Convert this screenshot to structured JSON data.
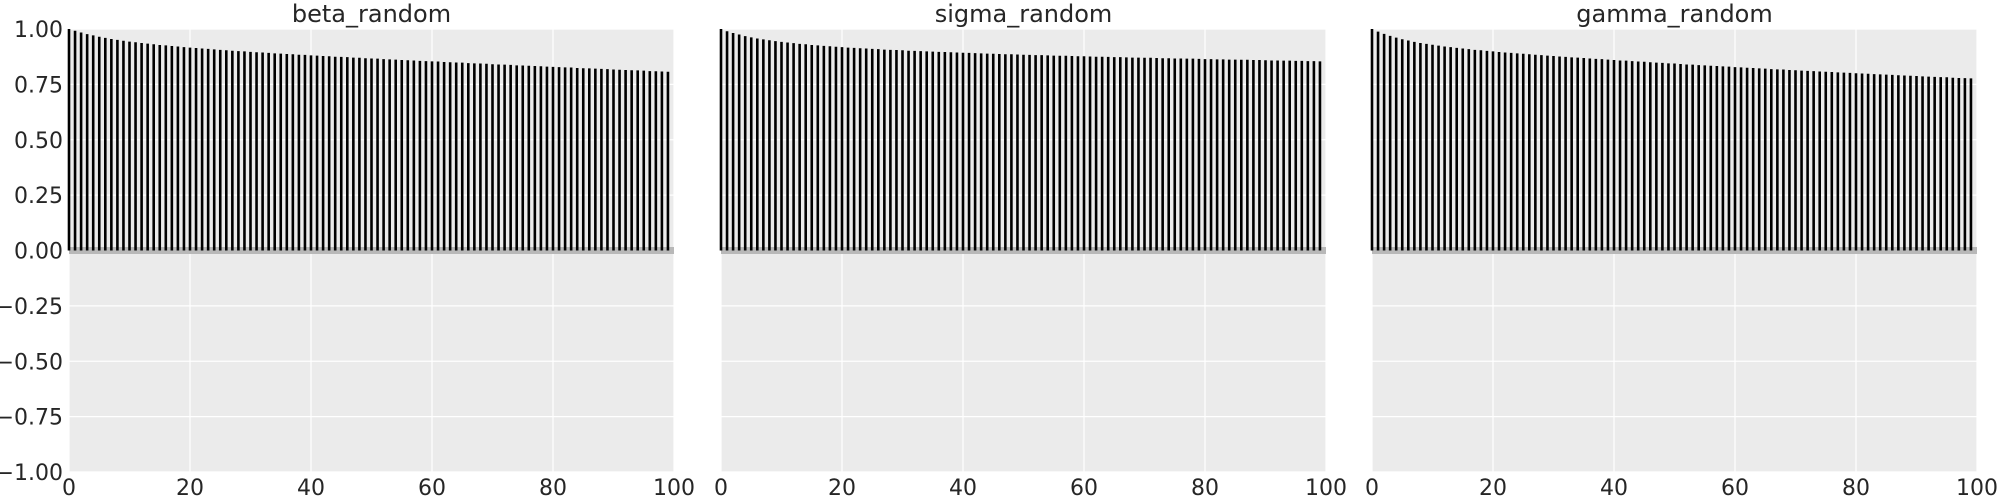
{
  "chart_data": [
    {
      "type": "bar",
      "title": "beta_random",
      "xlim": [
        0,
        100
      ],
      "ylim": [
        -1.0,
        1.0
      ],
      "grid": true,
      "xticks": [
        0,
        20,
        40,
        60,
        80,
        100
      ],
      "xtick_labels": [
        "0",
        "20",
        "40",
        "60",
        "80",
        "100"
      ],
      "yticks": [
        1.0,
        0.75,
        0.5,
        0.25,
        0.0,
        -0.25,
        -0.5,
        -0.75,
        -1.0
      ],
      "ytick_labels": [
        "1.00",
        "0.75",
        "0.50",
        "0.25",
        "0.00",
        "−0.25",
        "−0.50",
        "−0.75",
        "−1.00"
      ],
      "lags": [
        0,
        1,
        2,
        3,
        4,
        5,
        6,
        7,
        8,
        9,
        10,
        11,
        12,
        13,
        14,
        15,
        16,
        17,
        18,
        19,
        20,
        21,
        22,
        23,
        24,
        25,
        26,
        27,
        28,
        29,
        30,
        31,
        32,
        33,
        34,
        35,
        36,
        37,
        38,
        39,
        40,
        41,
        42,
        43,
        44,
        45,
        46,
        47,
        48,
        49,
        50,
        51,
        52,
        53,
        54,
        55,
        56,
        57,
        58,
        59,
        60,
        61,
        62,
        63,
        64,
        65,
        66,
        67,
        68,
        69,
        70,
        71,
        72,
        73,
        74,
        75,
        76,
        77,
        78,
        79,
        80,
        81,
        82,
        83,
        84,
        85,
        86,
        87,
        88,
        89,
        90,
        91,
        92,
        93,
        94,
        95,
        96,
        97,
        98,
        99
      ],
      "values": [
        1.0,
        0.992,
        0.984,
        0.977,
        0.971,
        0.965,
        0.96,
        0.955,
        0.951,
        0.947,
        0.943,
        0.94,
        0.937,
        0.934,
        0.931,
        0.928,
        0.926,
        0.923,
        0.921,
        0.918,
        0.916,
        0.914,
        0.912,
        0.91,
        0.908,
        0.906,
        0.904,
        0.902,
        0.9,
        0.899,
        0.897,
        0.895,
        0.894,
        0.892,
        0.89,
        0.889,
        0.887,
        0.886,
        0.884,
        0.883,
        0.881,
        0.88,
        0.878,
        0.877,
        0.875,
        0.874,
        0.873,
        0.871,
        0.87,
        0.868,
        0.867,
        0.866,
        0.864,
        0.863,
        0.862,
        0.86,
        0.859,
        0.858,
        0.856,
        0.855,
        0.854,
        0.853,
        0.851,
        0.85,
        0.849,
        0.848,
        0.846,
        0.845,
        0.844,
        0.843,
        0.841,
        0.84,
        0.839,
        0.838,
        0.836,
        0.835,
        0.834,
        0.833,
        0.832,
        0.83,
        0.829,
        0.828,
        0.827,
        0.826,
        0.824,
        0.823,
        0.822,
        0.821,
        0.82,
        0.819,
        0.817,
        0.816,
        0.815,
        0.814,
        0.813,
        0.812,
        0.81,
        0.809,
        0.808,
        0.807
      ]
    },
    {
      "type": "bar",
      "title": "sigma_random",
      "xlim": [
        0,
        100
      ],
      "ylim": [
        -1.0,
        1.0
      ],
      "grid": true,
      "xticks": [
        0,
        20,
        40,
        60,
        80,
        100
      ],
      "xtick_labels": [
        "0",
        "20",
        "40",
        "60",
        "80",
        "100"
      ],
      "lags": [
        0,
        1,
        2,
        3,
        4,
        5,
        6,
        7,
        8,
        9,
        10,
        11,
        12,
        13,
        14,
        15,
        16,
        17,
        18,
        19,
        20,
        21,
        22,
        23,
        24,
        25,
        26,
        27,
        28,
        29,
        30,
        31,
        32,
        33,
        34,
        35,
        36,
        37,
        38,
        39,
        40,
        41,
        42,
        43,
        44,
        45,
        46,
        47,
        48,
        49,
        50,
        51,
        52,
        53,
        54,
        55,
        56,
        57,
        58,
        59,
        60,
        61,
        62,
        63,
        64,
        65,
        66,
        67,
        68,
        69,
        70,
        71,
        72,
        73,
        74,
        75,
        76,
        77,
        78,
        79,
        80,
        81,
        82,
        83,
        84,
        85,
        86,
        87,
        88,
        89,
        90,
        91,
        92,
        93,
        94,
        95,
        96,
        97,
        98,
        99
      ],
      "values": [
        1.0,
        0.99,
        0.982,
        0.975,
        0.968,
        0.962,
        0.957,
        0.953,
        0.949,
        0.945,
        0.942,
        0.939,
        0.936,
        0.933,
        0.931,
        0.928,
        0.926,
        0.924,
        0.922,
        0.92,
        0.918,
        0.916,
        0.915,
        0.913,
        0.912,
        0.91,
        0.909,
        0.907,
        0.906,
        0.905,
        0.904,
        0.902,
        0.901,
        0.9,
        0.899,
        0.898,
        0.897,
        0.896,
        0.895,
        0.894,
        0.893,
        0.892,
        0.891,
        0.89,
        0.889,
        0.888,
        0.887,
        0.886,
        0.886,
        0.885,
        0.884,
        0.883,
        0.882,
        0.882,
        0.881,
        0.88,
        0.879,
        0.879,
        0.878,
        0.877,
        0.877,
        0.876,
        0.875,
        0.875,
        0.874,
        0.873,
        0.873,
        0.872,
        0.871,
        0.871,
        0.87,
        0.87,
        0.869,
        0.868,
        0.868,
        0.867,
        0.867,
        0.866,
        0.866,
        0.865,
        0.864,
        0.864,
        0.863,
        0.863,
        0.862,
        0.862,
        0.861,
        0.861,
        0.86,
        0.86,
        0.859,
        0.858,
        0.858,
        0.857,
        0.857,
        0.856,
        0.856,
        0.855,
        0.855,
        0.854
      ]
    },
    {
      "type": "bar",
      "title": "gamma_random",
      "xlim": [
        0,
        100
      ],
      "ylim": [
        -1.0,
        1.0
      ],
      "grid": true,
      "xticks": [
        0,
        20,
        40,
        60,
        80,
        100
      ],
      "xtick_labels": [
        "0",
        "20",
        "40",
        "60",
        "80",
        "100"
      ],
      "lags": [
        0,
        1,
        2,
        3,
        4,
        5,
        6,
        7,
        8,
        9,
        10,
        11,
        12,
        13,
        14,
        15,
        16,
        17,
        18,
        19,
        20,
        21,
        22,
        23,
        24,
        25,
        26,
        27,
        28,
        29,
        30,
        31,
        32,
        33,
        34,
        35,
        36,
        37,
        38,
        39,
        40,
        41,
        42,
        43,
        44,
        45,
        46,
        47,
        48,
        49,
        50,
        51,
        52,
        53,
        54,
        55,
        56,
        57,
        58,
        59,
        60,
        61,
        62,
        63,
        64,
        65,
        66,
        67,
        68,
        69,
        70,
        71,
        72,
        73,
        74,
        75,
        76,
        77,
        78,
        79,
        80,
        81,
        82,
        83,
        84,
        85,
        86,
        87,
        88,
        89,
        90,
        91,
        92,
        93,
        94,
        95,
        96,
        97,
        98,
        99
      ],
      "values": [
        1.0,
        0.988,
        0.978,
        0.969,
        0.961,
        0.954,
        0.948,
        0.942,
        0.937,
        0.933,
        0.929,
        0.925,
        0.921,
        0.918,
        0.915,
        0.912,
        0.909,
        0.906,
        0.904,
        0.901,
        0.899,
        0.896,
        0.894,
        0.892,
        0.89,
        0.888,
        0.886,
        0.884,
        0.882,
        0.88,
        0.878,
        0.876,
        0.874,
        0.872,
        0.871,
        0.869,
        0.867,
        0.865,
        0.864,
        0.862,
        0.86,
        0.858,
        0.857,
        0.855,
        0.853,
        0.852,
        0.85,
        0.848,
        0.847,
        0.845,
        0.844,
        0.842,
        0.84,
        0.839,
        0.837,
        0.836,
        0.834,
        0.833,
        0.831,
        0.83,
        0.828,
        0.827,
        0.825,
        0.824,
        0.822,
        0.821,
        0.819,
        0.818,
        0.817,
        0.815,
        0.814,
        0.812,
        0.811,
        0.81,
        0.808,
        0.807,
        0.806,
        0.804,
        0.803,
        0.802,
        0.8,
        0.799,
        0.798,
        0.796,
        0.795,
        0.794,
        0.793,
        0.791,
        0.79,
        0.789,
        0.788,
        0.786,
        0.785,
        0.784,
        0.783,
        0.782,
        0.78,
        0.779,
        0.778,
        0.777
      ]
    }
  ]
}
